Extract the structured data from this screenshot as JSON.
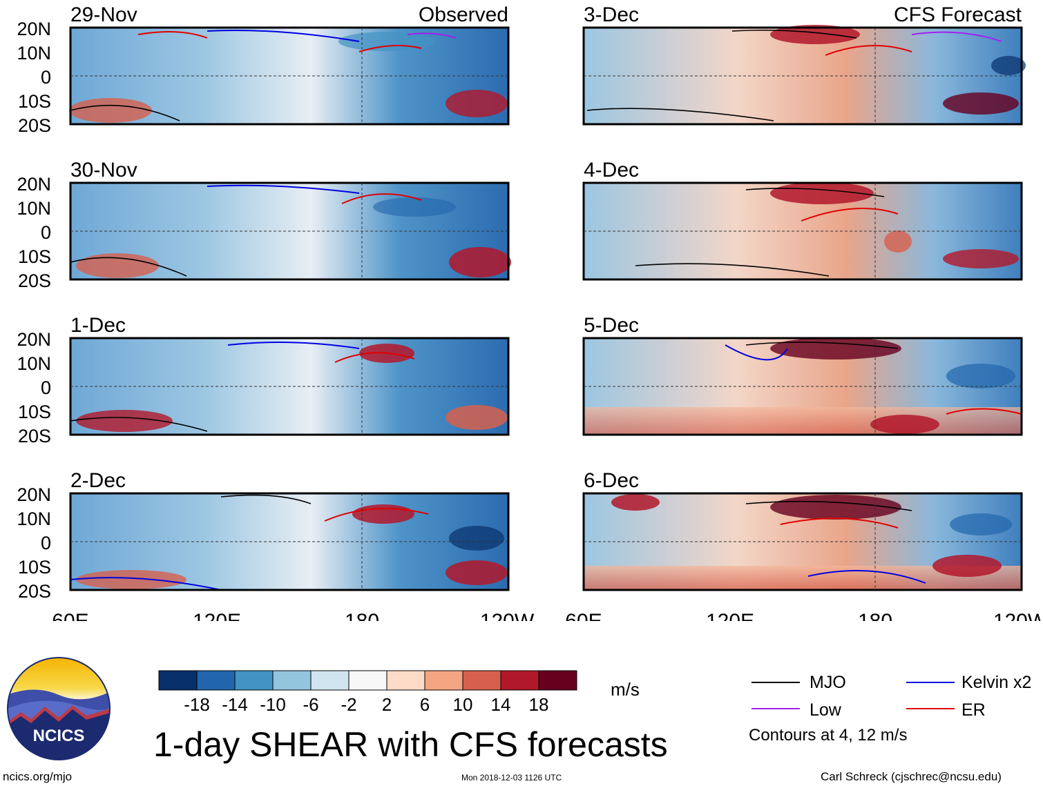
{
  "figure": {
    "title": "1-day SHEAR with CFS forecasts",
    "units": "m/s",
    "contours_note": "Contours at 4, 12 m/s",
    "footer_left": "ncics.org/mjo",
    "footer_center": "Mon 2018-12-03 1126 UTC",
    "footer_right": "Carl Schreck (cjschrec@ncsu.edu)",
    "logo_text": "NCICS"
  },
  "columns": {
    "left_label": "Observed",
    "right_label": "CFS Forecast"
  },
  "panels": {
    "left": [
      "29-Nov",
      "30-Nov",
      "1-Dec",
      "2-Dec"
    ],
    "right": [
      "3-Dec",
      "4-Dec",
      "5-Dec",
      "6-Dec"
    ]
  },
  "axes": {
    "lat_ticks": [
      "20N",
      "10N",
      "0",
      "10S",
      "20S"
    ],
    "lon_ticks": [
      "60E",
      "120E",
      "180",
      "120W"
    ]
  },
  "colorbar": {
    "tick_labels": [
      "-18",
      "-14",
      "-10",
      "-6",
      "-2",
      "2",
      "6",
      "10",
      "14",
      "18"
    ],
    "colors": [
      "#08306b",
      "#2166ac",
      "#4393c3",
      "#92c5de",
      "#d1e5f0",
      "#f7f7f7",
      "#fddbc7",
      "#f4a582",
      "#d6604d",
      "#b2182b",
      "#67001f"
    ]
  },
  "legend": [
    {
      "label": "MJO",
      "color": "#000000"
    },
    {
      "label": "Kelvin x2",
      "color": "#0000e0"
    },
    {
      "label": "Low",
      "color": "#a020f0"
    },
    {
      "label": "ER",
      "color": "#e00000"
    }
  ]
}
